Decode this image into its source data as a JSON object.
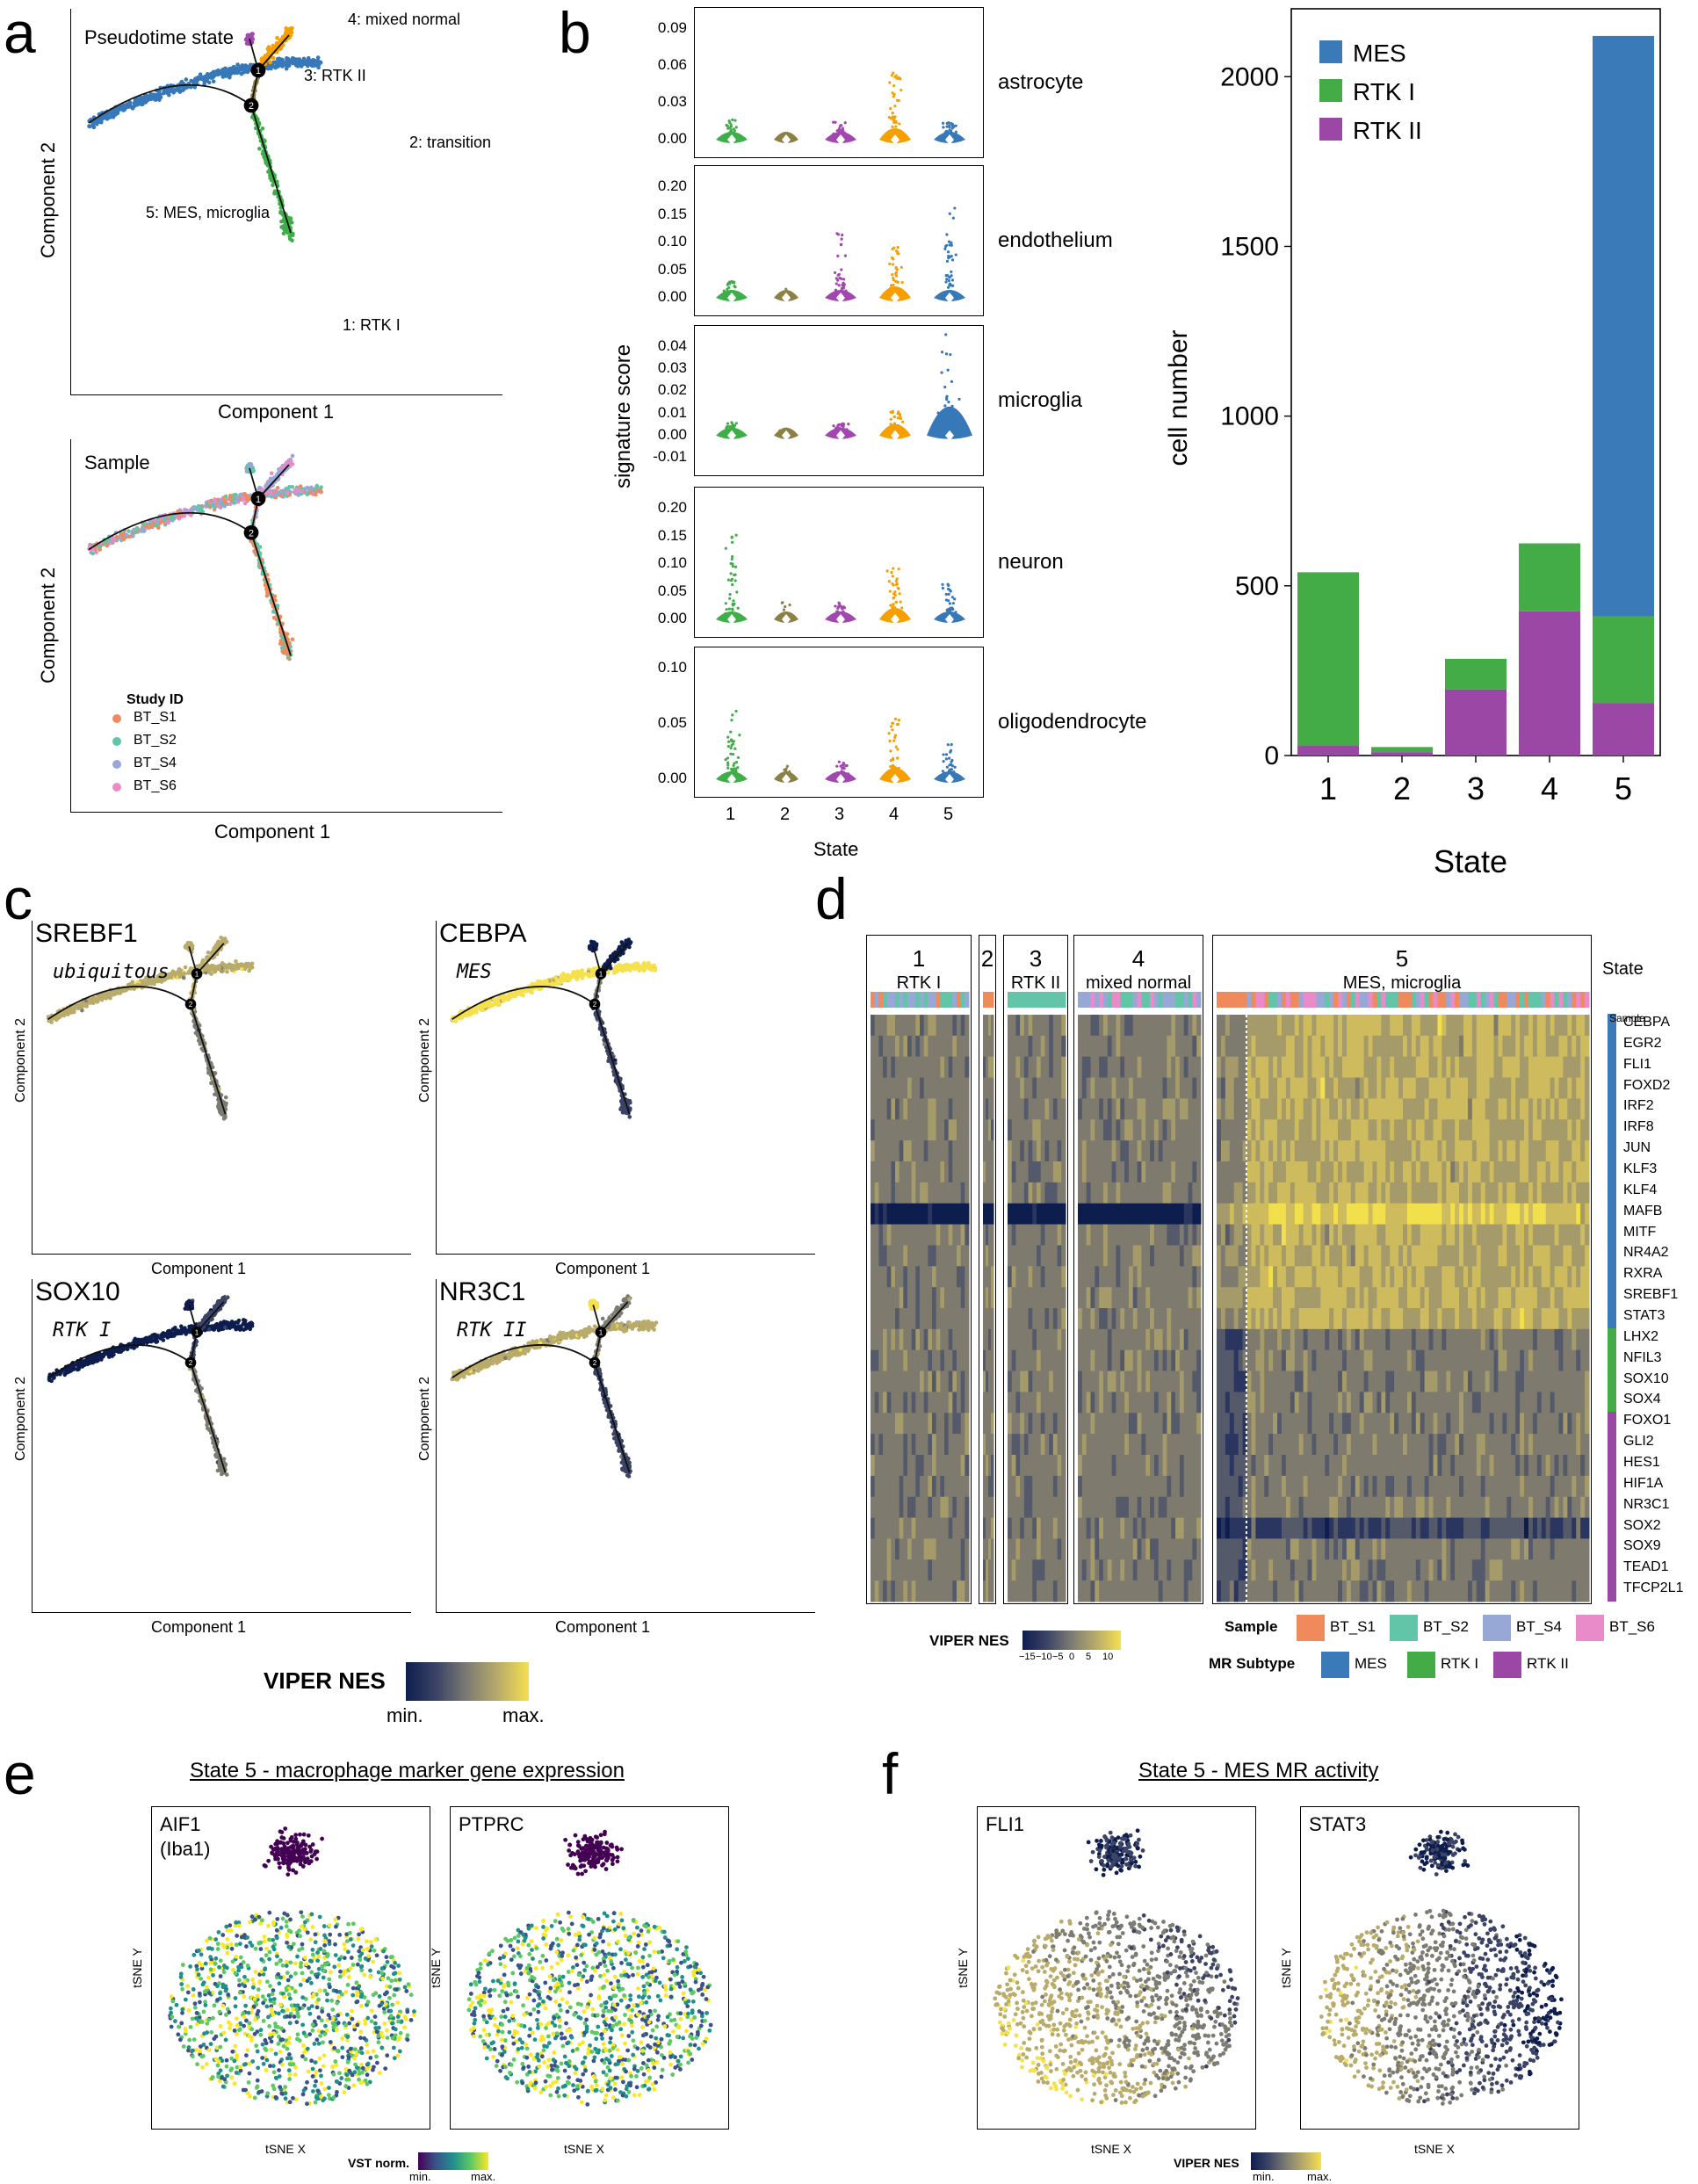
{
  "panels": {
    "a": {
      "label": "a",
      "top": {
        "title": "Pseudotime state",
        "xlabel": "Component 1",
        "ylabel": "Component 2",
        "annotations": [
          "4: mixed normal",
          "3: RTK II",
          "2: transition",
          "5: MES, microglia",
          "1: RTK I"
        ]
      },
      "bottom": {
        "title": "Sample",
        "xlabel": "Component 1",
        "ylabel": "Component 2",
        "legend_title": "Study ID",
        "legend": [
          "BT_S1",
          "BT_S2",
          "BT_S4",
          "BT_S6"
        ]
      },
      "node_labels": [
        "1",
        "2"
      ]
    },
    "b": {
      "label": "b",
      "violin": {
        "ylabel": "signature score",
        "xlabel": "State",
        "x_ticks": [
          "1",
          "2",
          "3",
          "4",
          "5"
        ],
        "facets": [
          {
            "name": "astrocyte",
            "ticks": [
              "0.09",
              "0.06",
              "0.03",
              "0.00"
            ]
          },
          {
            "name": "endothelium",
            "ticks": [
              "0.20",
              "0.15",
              "0.10",
              "0.05",
              "0.00"
            ]
          },
          {
            "name": "microglia",
            "ticks": [
              "0.04",
              "0.03",
              "0.02",
              "0.01",
              "0.00",
              "-0.01"
            ]
          },
          {
            "name": "neuron",
            "ticks": [
              "0.20",
              "0.15",
              "0.10",
              "0.05",
              "0.00"
            ]
          },
          {
            "name": "oligodendrocyte",
            "ticks": [
              "0.10",
              "0.05",
              "0.00"
            ]
          }
        ]
      },
      "bar": {
        "ylabel": "cell number",
        "xlabel": "State",
        "y_ticks": [
          "2000",
          "1500",
          "1000",
          "500",
          "0"
        ],
        "legend": [
          "MES",
          "RTK I",
          "RTK II"
        ]
      }
    },
    "c": {
      "label": "c",
      "plots": [
        {
          "gene": "SREBF1",
          "subtype": "ubiquitous"
        },
        {
          "gene": "CEBPA",
          "subtype": "MES"
        },
        {
          "gene": "SOX10",
          "subtype": "RTK I"
        },
        {
          "gene": "NR3C1",
          "subtype": "RTK II"
        }
      ],
      "xlabel": "Component 1",
      "ylabel": "Component 2",
      "legend": {
        "title": "VIPER NES",
        "min": "min.",
        "max": "max."
      }
    },
    "d": {
      "label": "d",
      "groups": [
        {
          "num": "1",
          "name": "RTK I"
        },
        {
          "num": "2",
          "name": ""
        },
        {
          "num": "3",
          "name": "RTK II"
        },
        {
          "num": "4",
          "name": "mixed normal"
        },
        {
          "num": "5",
          "name": "MES, microglia"
        }
      ],
      "state_label": "State",
      "sample_label": "Sample",
      "genes": [
        "CEBPA",
        "EGR2",
        "FLI1",
        "FOXD2",
        "IRF2",
        "IRF8",
        "JUN",
        "KLF3",
        "KLF4",
        "MAFB",
        "MITF",
        "NR4A2",
        "RXRA",
        "SREBF1",
        "STAT3",
        "LHX2",
        "NFIL3",
        "SOX10",
        "SOX4",
        "FOXO1",
        "GLI2",
        "HES1",
        "HIF1A",
        "NR3C1",
        "SOX2",
        "SOX9",
        "TEAD1",
        "TFCP2L1"
      ],
      "legend": {
        "viper_title": "VIPER NES",
        "viper_ticks": [
          "−15",
          "−10",
          "−5",
          "0",
          "5",
          "10"
        ],
        "sample_title": "Sample",
        "samples": [
          "BT_S1",
          "BT_S2",
          "BT_S4",
          "BT_S6"
        ],
        "mr_title": "MR Subtype",
        "mrs": [
          "MES",
          "RTK I",
          "RTK II"
        ]
      }
    },
    "e": {
      "label": "e",
      "title": "State 5 - macrophage marker gene expression",
      "plots": [
        {
          "gene": "AIF1",
          "gene2": "(Iba1)"
        },
        {
          "gene": "PTPRC",
          "gene2": ""
        }
      ],
      "xlabel": "tSNE X",
      "ylabel": "tSNE Y",
      "legend": {
        "title": "VST norm.",
        "min": "min.",
        "max": "max."
      }
    },
    "f": {
      "label": "f",
      "title": "State 5 - MES MR activity",
      "plots": [
        {
          "gene": "FLI1"
        },
        {
          "gene": "STAT3"
        }
      ],
      "xlabel": "tSNE X",
      "ylabel": "tSNE Y",
      "legend": {
        "title": "VIPER NES",
        "min": "min.",
        "max": "max."
      }
    }
  },
  "colors": {
    "state1": "#3fae49",
    "state2": "#8c8045",
    "state3": "#a246b0",
    "state4": "#f59f00",
    "state5": "#3778b8",
    "BT_S1": "#f08a5d",
    "BT_S2": "#62c5a7",
    "BT_S4": "#97a8d6",
    "BT_S6": "#e98bc9",
    "MES": "#3b7ab8",
    "RTKI": "#43ac46",
    "RTKII": "#9a47a6"
  },
  "chart_data": [
    {
      "type": "bar",
      "title": "",
      "xlabel": "State",
      "ylabel": "cell number",
      "categories": [
        "1",
        "2",
        "3",
        "4",
        "5"
      ],
      "series": [
        {
          "name": "RTK II",
          "values": [
            30,
            10,
            195,
            425,
            155
          ]
        },
        {
          "name": "RTK I",
          "values": [
            510,
            15,
            90,
            200,
            255
          ]
        },
        {
          "name": "MES",
          "values": [
            0,
            0,
            0,
            0,
            1710
          ]
        }
      ],
      "stacked": true,
      "ylim": [
        0,
        2200
      ],
      "legend": "top-left"
    }
  ]
}
